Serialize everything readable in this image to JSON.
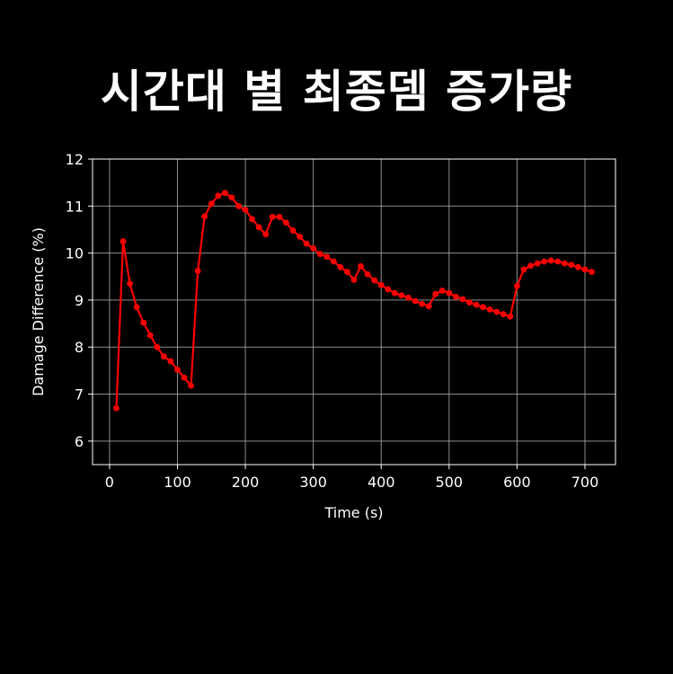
{
  "title": "시간대 별 최종뎀 증가량",
  "chart_data": {
    "type": "line",
    "title": "시간대 별 최종뎀 증가량",
    "xlabel": "Time (s)",
    "ylabel": "Damage Difference (%)",
    "xlim": [
      -25,
      745
    ],
    "ylim": [
      5.5,
      12
    ],
    "xticks": [
      0,
      100,
      200,
      300,
      400,
      500,
      600,
      700
    ],
    "yticks": [
      6,
      7,
      8,
      9,
      10,
      11,
      12
    ],
    "grid": true,
    "line_color": "#ff0000",
    "background": "#000000",
    "foreground": "#ffffff",
    "series": [
      {
        "x": [
          10,
          20,
          30,
          40,
          50,
          60,
          70,
          80,
          90,
          100,
          110,
          120,
          130,
          140,
          150,
          160,
          170,
          180,
          190,
          200,
          210,
          220,
          230,
          240,
          250,
          260,
          270,
          280,
          290,
          300,
          310,
          320,
          330,
          340,
          350,
          360,
          370,
          380,
          390,
          400,
          410,
          420,
          430,
          440,
          450,
          460,
          470,
          480,
          490,
          500,
          510,
          520,
          530,
          540,
          550,
          560,
          570,
          580,
          590,
          600,
          610,
          620,
          630,
          640,
          650,
          660,
          670,
          680,
          690,
          700,
          710
        ],
        "y": [
          6.7,
          10.25,
          9.35,
          8.85,
          8.52,
          8.25,
          8.0,
          7.8,
          7.7,
          7.52,
          7.35,
          7.18,
          9.62,
          10.78,
          11.05,
          11.22,
          11.28,
          11.18,
          11.0,
          10.92,
          10.72,
          10.55,
          10.4,
          10.77,
          10.77,
          10.65,
          10.48,
          10.35,
          10.2,
          10.1,
          9.98,
          9.92,
          9.82,
          9.7,
          9.6,
          9.43,
          9.72,
          9.55,
          9.42,
          9.32,
          9.23,
          9.15,
          9.1,
          9.05,
          8.98,
          8.92,
          8.87,
          9.13,
          9.2,
          9.15,
          9.07,
          9.02,
          8.95,
          8.9,
          8.85,
          8.8,
          8.75,
          8.7,
          8.65,
          9.3,
          9.65,
          9.73,
          9.78,
          9.82,
          9.84,
          9.82,
          9.78,
          9.75,
          9.7,
          9.65,
          9.6
        ]
      }
    ]
  }
}
